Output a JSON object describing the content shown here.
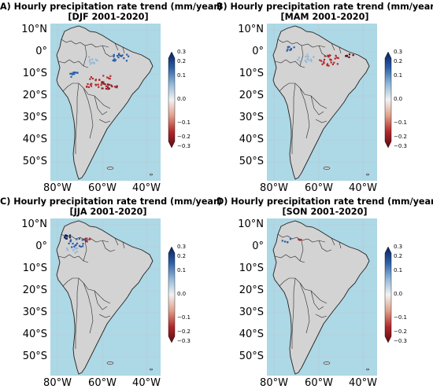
{
  "panels": [
    {
      "title": "A) Hourly precipitation rate trend (mm/year)",
      "subtitle": "[DJF 2001-2020]"
    },
    {
      "title": "B) Hourly precipitation rate trend (mm/year)",
      "subtitle": "[MAM 2001-2020]"
    },
    {
      "title": "C) Hourly precipitation rate trend (mm/year)",
      "subtitle": "[JJA 2001-2020]"
    },
    {
      "title": "D) Hourly precipitation rate trend (mm/year)",
      "subtitle": "[SON 2001-2020]"
    }
  ],
  "axes": {
    "lat_labels": [
      "10°N",
      "0°",
      "10°S",
      "20°S",
      "30°S",
      "40°S",
      "50°S"
    ],
    "lon_labels": [
      "80°W",
      "60°W",
      "40°W"
    ]
  },
  "colorbar": {
    "ticks": [
      "0.3",
      "0.2",
      "0.1",
      "0.0",
      "−0.1",
      "−0.2",
      "−0.3"
    ],
    "colors": [
      "#0b1f5c",
      "#2b5fa8",
      "#8fb8d8",
      "#f2f2f2",
      "#e0a08a",
      "#b2282b",
      "#5c0a12"
    ]
  },
  "colors": {
    "ocean": "#add8e6",
    "land": "#d3d3d3",
    "border": "#2a2a2a"
  }
}
